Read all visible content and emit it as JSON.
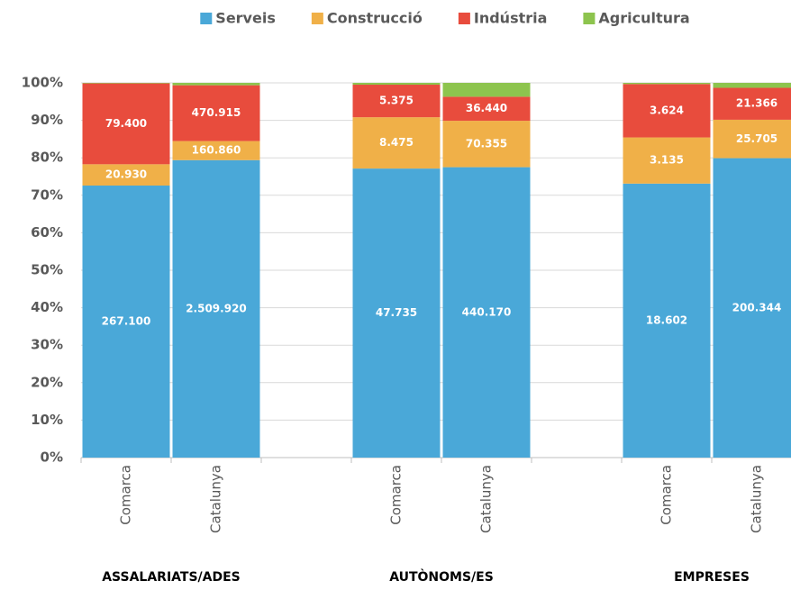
{
  "chart_data": {
    "type": "bar",
    "stacking": "percent",
    "categories": [
      "Comarca",
      "Catalunya",
      null,
      "Comarca",
      "Catalunya",
      null,
      "Comarca",
      "Catalunya"
    ],
    "group_labels": [
      "ASSALARIATS/ADES",
      "AUTÒNOMS/ES",
      "EMPRESES"
    ],
    "series": [
      {
        "name": "Serveis",
        "color": "#4aa8d8",
        "values": [
          267100,
          2509920,
          null,
          47735,
          440170,
          null,
          18602,
          200344
        ],
        "value_labels": [
          "267.100",
          "2.509.920",
          null,
          "47.735",
          "440.170",
          null,
          "18.602",
          "200.344"
        ]
      },
      {
        "name": "Construcció",
        "color": "#f0b048",
        "values": [
          20930,
          160860,
          null,
          8475,
          70355,
          null,
          3135,
          25705
        ],
        "value_labels": [
          "20.930",
          "160.860",
          null,
          "8.475",
          "70.355",
          null,
          "3.135",
          "25.705"
        ]
      },
      {
        "name": "Indústria",
        "color": "#e84c3d",
        "values": [
          79400,
          470915,
          null,
          5375,
          36440,
          null,
          3624,
          21366
        ],
        "value_labels": [
          "79.400",
          "470.915",
          null,
          "5.375",
          "36.440",
          null,
          "3.624",
          "21.366"
        ]
      },
      {
        "name": "Agricultura",
        "color": "#8dc44e",
        "values": [
          500,
          20000,
          null,
          300,
          21000,
          null,
          80,
          3300
        ]
      }
    ],
    "ylim": [
      0,
      100
    ],
    "yticks": [
      {
        "value": 0,
        "label": "0%"
      },
      {
        "value": 10,
        "label": "10%"
      },
      {
        "value": 20,
        "label": "20%"
      },
      {
        "value": 30,
        "label": "30%"
      },
      {
        "value": 40,
        "label": "40%"
      },
      {
        "value": 50,
        "label": "50%"
      },
      {
        "value": 60,
        "label": "60%"
      },
      {
        "value": 70,
        "label": "70%"
      },
      {
        "value": 80,
        "label": "80%"
      },
      {
        "value": 90,
        "label": "90%"
      },
      {
        "value": 100,
        "label": "100%"
      }
    ],
    "grid": true,
    "legend": "top"
  }
}
